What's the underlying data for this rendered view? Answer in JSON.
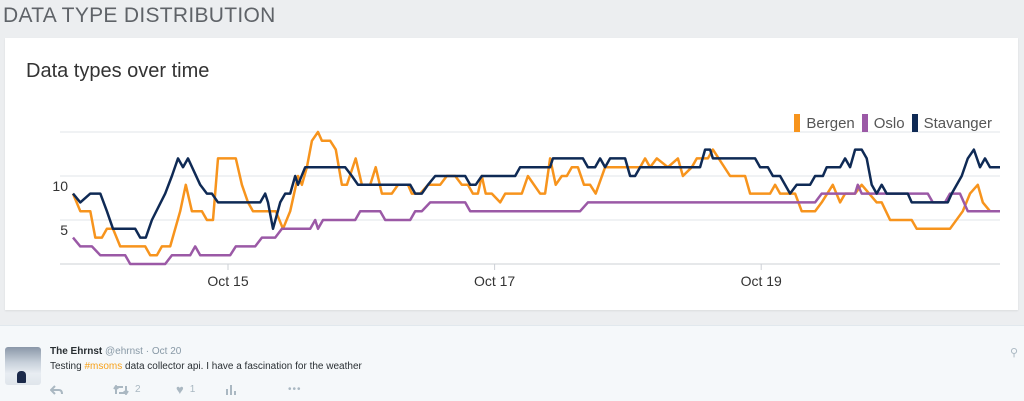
{
  "page": {
    "heading": "DATA TYPE DISTRIBUTION"
  },
  "chart_data": {
    "type": "line",
    "title": "Data types over time",
    "x_unit": "hours since Oct 15 00:00",
    "xlabel": "",
    "ylabel": "",
    "x_ticks": [
      {
        "label": "Oct 15",
        "x": 0
      },
      {
        "label": "Oct 17",
        "x": 48
      },
      {
        "label": "Oct 19",
        "x": 96
      }
    ],
    "y_ticks": [
      {
        "label": "5",
        "y": 5
      },
      {
        "label": "10",
        "y": 10
      }
    ],
    "gridlines_y": [
      0,
      5,
      10,
      15
    ],
    "xlim": [
      -28,
      139
    ],
    "ylim": [
      0,
      15
    ],
    "legend_position": "top-right",
    "series": [
      {
        "name": "Bergen",
        "color": "#f7941d",
        "points": [
          [
            -27.9,
            8
          ],
          [
            -26.6,
            6
          ],
          [
            -24.8,
            6
          ],
          [
            -23.9,
            3
          ],
          [
            -22.7,
            3
          ],
          [
            -21.8,
            4
          ],
          [
            -20.7,
            4
          ],
          [
            -19.4,
            2
          ],
          [
            -14.9,
            2
          ],
          [
            -14.0,
            1
          ],
          [
            -12.8,
            1
          ],
          [
            -11.9,
            2
          ],
          [
            -10.4,
            2
          ],
          [
            -8.6,
            6
          ],
          [
            -7.6,
            9
          ],
          [
            -6.5,
            6
          ],
          [
            -4.7,
            6
          ],
          [
            -3.8,
            5
          ],
          [
            -2.7,
            5
          ],
          [
            -1.8,
            12
          ],
          [
            1.4,
            12
          ],
          [
            2.5,
            9
          ],
          [
            3.6,
            7
          ],
          [
            4.5,
            6
          ],
          [
            8.6,
            6
          ],
          [
            9.9,
            4
          ],
          [
            11.2,
            6
          ],
          [
            12.6,
            10
          ],
          [
            13.3,
            9
          ],
          [
            14.2,
            11
          ],
          [
            15.1,
            14
          ],
          [
            16.2,
            15
          ],
          [
            16.9,
            14
          ],
          [
            18.4,
            14
          ],
          [
            19.4,
            13
          ],
          [
            20.5,
            9
          ],
          [
            21.4,
            9
          ],
          [
            23.0,
            12
          ],
          [
            24.1,
            9
          ],
          [
            25.6,
            9
          ],
          [
            26.6,
            11
          ],
          [
            27.7,
            8
          ],
          [
            29.5,
            8
          ],
          [
            30.6,
            9
          ],
          [
            32.4,
            9
          ],
          [
            33.1,
            8
          ],
          [
            34.6,
            8
          ],
          [
            36.0,
            9
          ],
          [
            38.2,
            9
          ],
          [
            39.4,
            10
          ],
          [
            40.9,
            10
          ],
          [
            42.1,
            9
          ],
          [
            43.2,
            9
          ],
          [
            44.1,
            8
          ],
          [
            45.0,
            8
          ],
          [
            45.7,
            10
          ],
          [
            46.4,
            8
          ],
          [
            47.5,
            8
          ],
          [
            49.0,
            7
          ],
          [
            49.9,
            8
          ],
          [
            52.9,
            8
          ],
          [
            54.0,
            10
          ],
          [
            56.2,
            8
          ],
          [
            57.1,
            8
          ],
          [
            58.0,
            12
          ],
          [
            59.0,
            9
          ],
          [
            60.1,
            10
          ],
          [
            61.0,
            10
          ],
          [
            61.9,
            11
          ],
          [
            63.0,
            11
          ],
          [
            64.1,
            9
          ],
          [
            65.2,
            9
          ],
          [
            66.2,
            8
          ],
          [
            67.9,
            11
          ],
          [
            74.2,
            11
          ],
          [
            75.1,
            12
          ],
          [
            76.0,
            11
          ],
          [
            77.2,
            12
          ],
          [
            79.2,
            11
          ],
          [
            81.0,
            12
          ],
          [
            81.9,
            10
          ],
          [
            83.5,
            11
          ],
          [
            84.4,
            12
          ],
          [
            86.4,
            12
          ],
          [
            87.3,
            13
          ],
          [
            90.4,
            10
          ],
          [
            93.1,
            10
          ],
          [
            94.0,
            8
          ],
          [
            97.6,
            8
          ],
          [
            98.5,
            9
          ],
          [
            99.4,
            8
          ],
          [
            102.1,
            8
          ],
          [
            103.3,
            6
          ],
          [
            105.7,
            6
          ],
          [
            106.9,
            7
          ],
          [
            108.9,
            9
          ],
          [
            110.2,
            7
          ],
          [
            111.1,
            8
          ],
          [
            112.9,
            8
          ],
          [
            114.1,
            9
          ],
          [
            116.8,
            7
          ],
          [
            117.7,
            7
          ],
          [
            119.2,
            5
          ],
          [
            123.1,
            5
          ],
          [
            124.0,
            4
          ],
          [
            130.0,
            4
          ],
          [
            132.3,
            6
          ],
          [
            133.6,
            8
          ],
          [
            135.0,
            9
          ],
          [
            135.9,
            7
          ],
          [
            137.2,
            6
          ],
          [
            139.0,
            6
          ]
        ]
      },
      {
        "name": "Oslo",
        "color": "#9b59a6",
        "points": [
          [
            -27.9,
            3
          ],
          [
            -26.6,
            2
          ],
          [
            -24.5,
            2
          ],
          [
            -23.0,
            1
          ],
          [
            -18.5,
            1
          ],
          [
            -17.6,
            0
          ],
          [
            -11.3,
            0
          ],
          [
            -10.1,
            1
          ],
          [
            -6.8,
            1
          ],
          [
            -5.9,
            2
          ],
          [
            -5.0,
            1
          ],
          [
            0.4,
            1
          ],
          [
            1.4,
            2
          ],
          [
            4.9,
            2
          ],
          [
            6.1,
            3
          ],
          [
            8.5,
            3
          ],
          [
            9.7,
            4
          ],
          [
            14.8,
            4
          ],
          [
            15.7,
            5
          ],
          [
            16.2,
            4
          ],
          [
            17.1,
            5
          ],
          [
            22.9,
            5
          ],
          [
            23.8,
            6
          ],
          [
            27.4,
            6
          ],
          [
            28.3,
            5
          ],
          [
            32.8,
            5
          ],
          [
            33.7,
            6
          ],
          [
            34.9,
            6
          ],
          [
            36.4,
            7
          ],
          [
            42.7,
            7
          ],
          [
            43.6,
            6
          ],
          [
            63.4,
            6
          ],
          [
            64.8,
            7
          ],
          [
            105.7,
            7
          ],
          [
            106.9,
            8
          ],
          [
            112.9,
            8
          ],
          [
            113.4,
            9
          ],
          [
            114.1,
            8
          ],
          [
            126.0,
            8
          ],
          [
            126.9,
            7
          ],
          [
            129.1,
            7
          ],
          [
            130.0,
            8
          ],
          [
            131.8,
            8
          ],
          [
            133.2,
            6
          ],
          [
            139.0,
            6
          ]
        ]
      },
      {
        "name": "Stavanger",
        "color": "#0f2a55",
        "points": [
          [
            -27.9,
            8
          ],
          [
            -26.6,
            7
          ],
          [
            -24.8,
            8
          ],
          [
            -23.0,
            8
          ],
          [
            -21.8,
            6
          ],
          [
            -20.7,
            4
          ],
          [
            -16.7,
            4
          ],
          [
            -15.8,
            3
          ],
          [
            -14.8,
            3
          ],
          [
            -13.7,
            5
          ],
          [
            -11.3,
            8
          ],
          [
            -10.1,
            10
          ],
          [
            -9.0,
            12
          ],
          [
            -8.1,
            11
          ],
          [
            -7.2,
            12
          ],
          [
            -5.0,
            9
          ],
          [
            -3.8,
            8
          ],
          [
            -2.9,
            8
          ],
          [
            -1.8,
            7
          ],
          [
            5.8,
            7
          ],
          [
            6.7,
            8
          ],
          [
            7.2,
            7
          ],
          [
            8.1,
            4
          ],
          [
            9.4,
            7
          ],
          [
            10.3,
            8
          ],
          [
            11.2,
            8
          ],
          [
            12.1,
            10
          ],
          [
            12.6,
            9
          ],
          [
            13.9,
            11
          ],
          [
            21.1,
            11
          ],
          [
            22.3,
            10
          ],
          [
            23.4,
            9
          ],
          [
            32.8,
            9
          ],
          [
            33.7,
            8
          ],
          [
            34.9,
            8
          ],
          [
            36.0,
            9
          ],
          [
            37.3,
            10
          ],
          [
            42.7,
            10
          ],
          [
            43.6,
            9
          ],
          [
            44.6,
            9
          ],
          [
            45.7,
            10
          ],
          [
            51.7,
            10
          ],
          [
            52.6,
            11
          ],
          [
            58.0,
            11
          ],
          [
            58.5,
            12
          ],
          [
            63.9,
            12
          ],
          [
            64.8,
            11
          ],
          [
            66.1,
            11
          ],
          [
            67.0,
            12
          ],
          [
            67.9,
            11
          ],
          [
            68.8,
            12
          ],
          [
            71.5,
            12
          ],
          [
            72.4,
            10
          ],
          [
            73.3,
            10
          ],
          [
            74.2,
            11
          ],
          [
            85.0,
            11
          ],
          [
            85.9,
            13
          ],
          [
            86.8,
            13
          ],
          [
            87.3,
            12
          ],
          [
            94.9,
            12
          ],
          [
            95.8,
            11
          ],
          [
            97.2,
            11
          ],
          [
            98.1,
            10
          ],
          [
            99.4,
            10
          ],
          [
            101.2,
            8
          ],
          [
            102.4,
            9
          ],
          [
            104.8,
            9
          ],
          [
            105.7,
            10
          ],
          [
            107.1,
            10
          ],
          [
            107.8,
            11
          ],
          [
            110.2,
            11
          ],
          [
            111.1,
            12
          ],
          [
            112.0,
            11
          ],
          [
            112.9,
            13
          ],
          [
            114.1,
            13
          ],
          [
            115.0,
            12
          ],
          [
            115.9,
            9
          ],
          [
            116.8,
            8
          ],
          [
            117.7,
            9
          ],
          [
            118.6,
            8
          ],
          [
            122.4,
            8
          ],
          [
            123.1,
            7
          ],
          [
            129.6,
            7
          ],
          [
            130.3,
            8
          ],
          [
            132.1,
            10
          ],
          [
            133.2,
            12
          ],
          [
            134.3,
            13
          ],
          [
            135.4,
            11
          ],
          [
            136.3,
            12
          ],
          [
            137.2,
            11
          ],
          [
            139.0,
            11
          ]
        ]
      }
    ]
  },
  "tweet": {
    "name": "The Ehrnst",
    "handle": "@ehrnst",
    "separator": "·",
    "date": "Oct 20",
    "text_before": "Testing ",
    "hashtag": "#msoms",
    "text_after": " data collector api. I have a fascination for the weather",
    "retweets": "2",
    "likes": "1",
    "more": "•••"
  }
}
